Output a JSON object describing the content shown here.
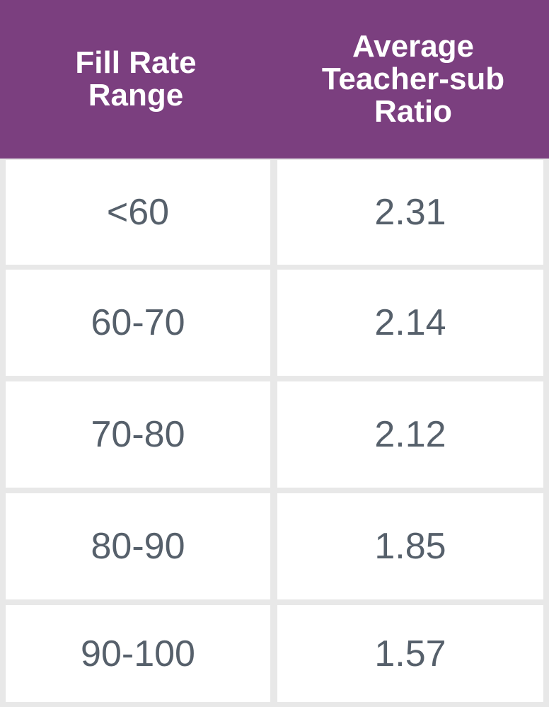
{
  "header": {
    "col1": [
      "Fill Rate",
      "Range"
    ],
    "col2": [
      "Average",
      "Teacher-sub",
      "Ratio"
    ]
  },
  "rows": [
    {
      "range": "<60",
      "ratio": "2.31"
    },
    {
      "range": "60-70",
      "ratio": "2.14"
    },
    {
      "range": "70-80",
      "ratio": "2.12"
    },
    {
      "range": "80-90",
      "ratio": "1.85"
    },
    {
      "range": "90-100",
      "ratio": "1.57"
    }
  ],
  "colors": {
    "header_bg": "#7b3f7f",
    "header_text": "#ffffff",
    "cell_bg": "#ffffff",
    "cell_text": "#56606b",
    "grid": "#e8e8e8"
  },
  "chart_data": {
    "type": "table",
    "columns": [
      "Fill Rate Range",
      "Average Teacher-sub Ratio"
    ],
    "rows": [
      [
        "<60",
        2.31
      ],
      [
        "60-70",
        2.14
      ],
      [
        "70-80",
        2.12
      ],
      [
        "80-90",
        1.85
      ],
      [
        "90-100",
        1.57
      ]
    ]
  }
}
